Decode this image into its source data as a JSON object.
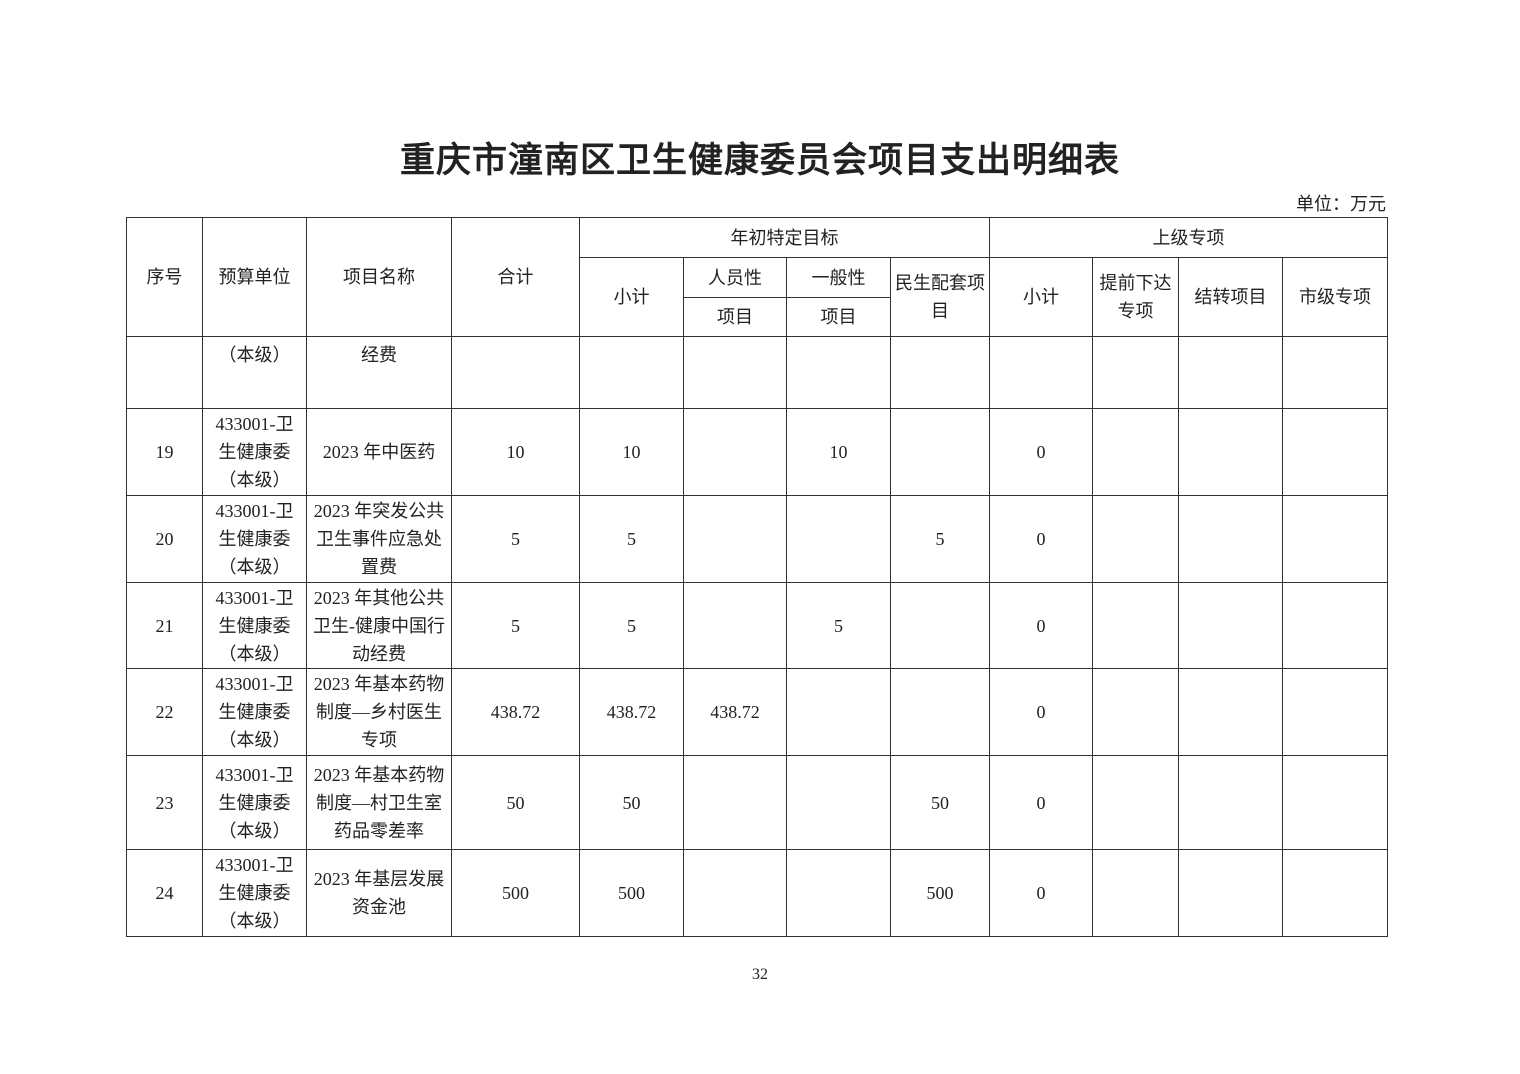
{
  "title": "重庆市潼南区卫生健康委员会项目支出明细表",
  "unit_label": "单位：万元",
  "header": {
    "seq": "序号",
    "budget_unit": "预算单位",
    "project_name": "项目名称",
    "total": "合计",
    "group_initial": "年初特定目标",
    "group_upper": "上级专项",
    "subtotal": "小计",
    "personnel": [
      "人员性",
      "项目"
    ],
    "general": [
      "一般性",
      "项目"
    ],
    "livelihood": [
      "民生配套项",
      "目"
    ],
    "upper_subtotal": "小计",
    "advance": [
      "提前下达",
      "专项"
    ],
    "carryover": "结转项目",
    "city": "市级专项"
  },
  "rows": [
    {
      "seq": "",
      "unit": [
        "（本级）"
      ],
      "name": [
        "经费"
      ],
      "total": "",
      "subtotal": "",
      "personnel": "",
      "general": "",
      "livelihood": "",
      "upper_subtotal": "",
      "advance": "",
      "carryover": "",
      "city": ""
    },
    {
      "seq": "19",
      "unit": [
        "433001-卫",
        "生健康委",
        "（本级）"
      ],
      "name": [
        "2023 年中医药"
      ],
      "total": "10",
      "subtotal": "10",
      "personnel": "",
      "general": "10",
      "livelihood": "",
      "upper_subtotal": "0",
      "advance": "",
      "carryover": "",
      "city": ""
    },
    {
      "seq": "20",
      "unit": [
        "433001-卫",
        "生健康委",
        "（本级）"
      ],
      "name": [
        "2023 年突发公共",
        "卫生事件应急处",
        "置费"
      ],
      "total": "5",
      "subtotal": "5",
      "personnel": "",
      "general": "",
      "livelihood": "5",
      "upper_subtotal": "0",
      "advance": "",
      "carryover": "",
      "city": ""
    },
    {
      "seq": "21",
      "unit": [
        "433001-卫",
        "生健康委",
        "（本级）"
      ],
      "name": [
        "2023 年其他公共",
        "卫生-健康中国行",
        "动经费"
      ],
      "total": "5",
      "subtotal": "5",
      "personnel": "",
      "general": "5",
      "livelihood": "",
      "upper_subtotal": "0",
      "advance": "",
      "carryover": "",
      "city": ""
    },
    {
      "seq": "22",
      "unit": [
        "433001-卫",
        "生健康委",
        "（本级）"
      ],
      "name": [
        "2023 年基本药物",
        "制度—乡村医生",
        "专项"
      ],
      "total": "438.72",
      "subtotal": "438.72",
      "personnel": "438.72",
      "general": "",
      "livelihood": "",
      "upper_subtotal": "0",
      "advance": "",
      "carryover": "",
      "city": ""
    },
    {
      "seq": "23",
      "unit": [
        "433001-卫",
        "生健康委",
        "（本级）"
      ],
      "name": [
        "2023 年基本药物",
        "制度—村卫生室",
        "药品零差率"
      ],
      "total": "50",
      "subtotal": "50",
      "personnel": "",
      "general": "",
      "livelihood": "50",
      "upper_subtotal": "0",
      "advance": "",
      "carryover": "",
      "city": ""
    },
    {
      "seq": "24",
      "unit": [
        "433001-卫",
        "生健康委",
        "（本级）"
      ],
      "name": [
        "2023 年基层发展",
        "资金池"
      ],
      "total": "500",
      "subtotal": "500",
      "personnel": "",
      "general": "",
      "livelihood": "500",
      "upper_subtotal": "0",
      "advance": "",
      "carryover": "",
      "city": ""
    }
  ],
  "page_number": "32"
}
